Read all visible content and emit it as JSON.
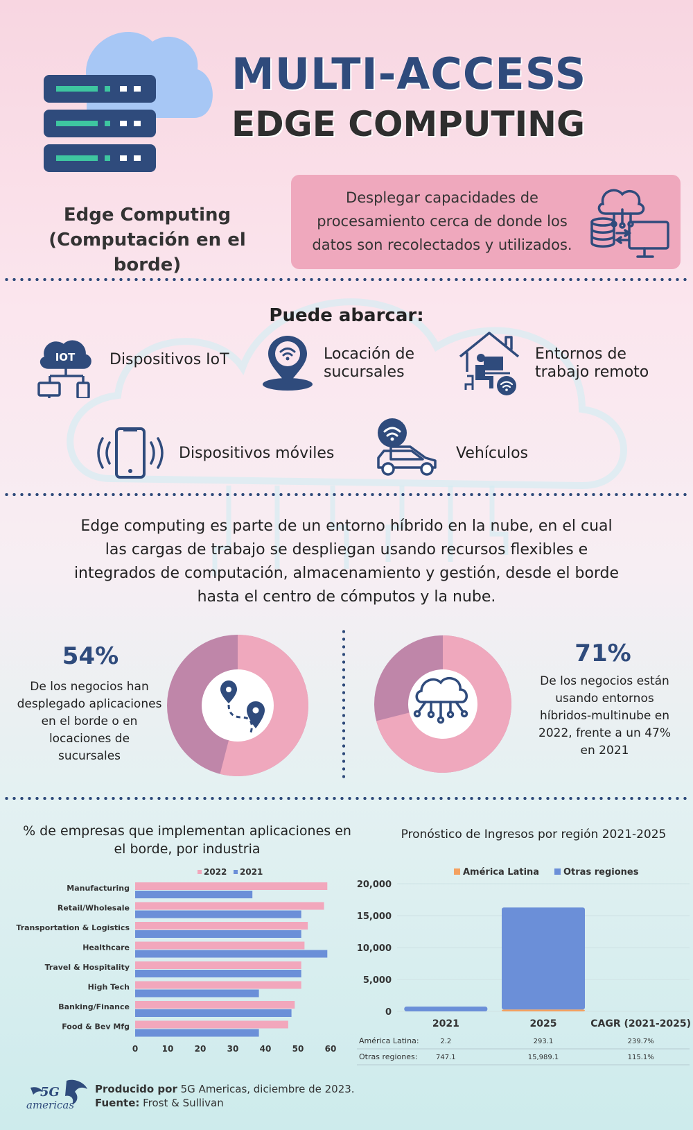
{
  "header": {
    "title_line1": "MULTI-ACCESS",
    "title_line2": "EDGE COMPUTING"
  },
  "definition": {
    "term_line1": "Edge Computing",
    "term_line2": "(Computación en el borde)",
    "text": "Desplegar capacidades de procesamiento cerca de donde los datos son recolectados y utilizados."
  },
  "coverage": {
    "title": "Puede abarcar:",
    "items": [
      {
        "icon": "iot-icon",
        "line1": "Dispositivos IoT",
        "line2": ""
      },
      {
        "icon": "location-pin-icon",
        "line1": "Locación de",
        "line2": "sucursales"
      },
      {
        "icon": "remote-work-icon",
        "line1": "Entornos de",
        "line2": "trabajo remoto"
      },
      {
        "icon": "mobile-phone-icon",
        "line1": "Dispositivos móviles",
        "line2": ""
      },
      {
        "icon": "connected-car-icon",
        "line1": "Vehículos",
        "line2": ""
      }
    ],
    "iot_badge": "IOT"
  },
  "hybrid_paragraph": "Edge computing es parte de un entorno híbrido en la nube, en el cual las cargas de trabajo se despliegan usando recursos flexibles e integrados de computación, almacenamiento y gestión, desde el borde hasta el centro de cómputos y la nube.",
  "stats": [
    {
      "pct": "54%",
      "value": 54,
      "text": "De los negocios han desplegado aplicaciones en el borde o en locaciones de sucursales",
      "colors": {
        "main": "#efa8bd",
        "rest": "#bf86a9"
      }
    },
    {
      "pct": "71%",
      "value": 71,
      "text": "De los negocios están usando entornos híbridos-multinube en 2022, frente a un 47% en 2021",
      "colors": {
        "main": "#efa8bd",
        "rest": "#bf86a9"
      }
    }
  ],
  "chart_data": [
    {
      "type": "bar",
      "orientation": "horizontal",
      "title": "% de empresas que implementan aplicaciones en el borde, por industria",
      "categories": [
        "Manufacturing",
        "Retail/Wholesale",
        "Transportation & Logistics",
        "Healthcare",
        "Travel & Hospitality",
        "High Tech",
        "Banking/Finance",
        "Food & Bev Mfg"
      ],
      "series": [
        {
          "name": "2022",
          "color": "#f2a7bc",
          "values": [
            59,
            58,
            53,
            52,
            51,
            51,
            49,
            47
          ]
        },
        {
          "name": "2021",
          "color": "#6b8fd8",
          "values": [
            36,
            51,
            51,
            59,
            51,
            38,
            48,
            38
          ]
        }
      ],
      "xlim": [
        0,
        60
      ],
      "xticks": [
        "0",
        "10",
        "20",
        "30",
        "40",
        "50",
        "60"
      ],
      "legend": "top"
    },
    {
      "type": "bar",
      "stacked": true,
      "title": "Pronóstico de Ingresos por región 2021-2025",
      "categories": [
        "2021",
        "2025",
        "CAGR (2021-2025)"
      ],
      "series": [
        {
          "name": "América Latina",
          "color": "#f4a160",
          "values": [
            2.2,
            293.1,
            null
          ]
        },
        {
          "name": "Otras regiones",
          "color": "#6b8fd8",
          "values": [
            747.1,
            15989.1,
            null
          ]
        }
      ],
      "ylim": [
        0,
        20000
      ],
      "yticks": [
        "20,000",
        "15,000",
        "10,000",
        "5,000",
        "0"
      ],
      "legend": "top",
      "table": [
        {
          "label": "América Latina:",
          "values": [
            "2.2",
            "293.1",
            "239.7%"
          ]
        },
        {
          "label": "Otras regiones:",
          "values": [
            "747.1",
            "15,989.1",
            "115.1%"
          ]
        }
      ]
    }
  ],
  "footer": {
    "logo_text": "5G americas",
    "produced_label": "Producido por",
    "produced_value": " 5G Americas, diciembre de 2023.",
    "source_label": "Fuente:",
    "source_value": " Frost & Sullivan"
  },
  "colors": {
    "navy": "#2f4b7c",
    "pink": "#efa8bd",
    "mauve": "#bf86a9",
    "green": "#3ec6a0",
    "blue": "#6b8fd8",
    "orange": "#f4a160"
  }
}
